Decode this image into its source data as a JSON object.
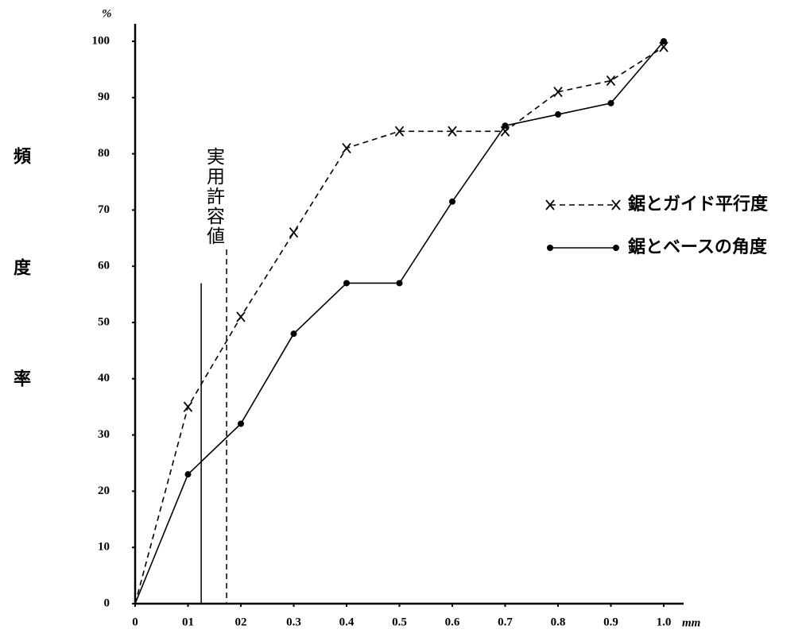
{
  "chart_data": {
    "type": "line",
    "y_unit": "%",
    "x_unit": "mm",
    "y_label": "頻度率",
    "annotation": "実用許容値",
    "x": [
      0,
      0.1,
      0.2,
      0.3,
      0.4,
      0.5,
      0.6,
      0.7,
      0.8,
      0.9,
      1.0
    ],
    "series": [
      {
        "name": "鋸とガイド平行度",
        "color": "#000000",
        "style": "dashed",
        "marker": "x",
        "values": [
          0,
          35,
          51,
          66,
          81,
          84,
          84,
          84,
          91,
          93,
          99
        ]
      },
      {
        "name": "鋸とベースの角度",
        "color": "#000000",
        "style": "solid",
        "marker": "dot",
        "values": [
          0,
          23,
          32,
          48,
          57,
          57,
          71.5,
          85,
          87,
          89,
          100
        ]
      }
    ],
    "reference_lines": [
      {
        "x": 0.125,
        "top": 57,
        "style": "solid"
      },
      {
        "x": 0.173,
        "top": 63,
        "style": "dashed"
      }
    ],
    "xlim": [
      0,
      1.0
    ],
    "ylim": [
      0,
      100
    ],
    "xticks": [
      0,
      {
        "value": 0.1,
        "label": "01"
      },
      {
        "value": 0.2,
        "label": "02"
      },
      0.3,
      0.4,
      0.5,
      0.6,
      0.7,
      0.8,
      0.9,
      {
        "value": 1.0,
        "label": "1.0"
      }
    ],
    "yticks": [
      0,
      10,
      20,
      30,
      40,
      50,
      60,
      70,
      80,
      90,
      100
    ],
    "grid": false,
    "legend": "right"
  }
}
